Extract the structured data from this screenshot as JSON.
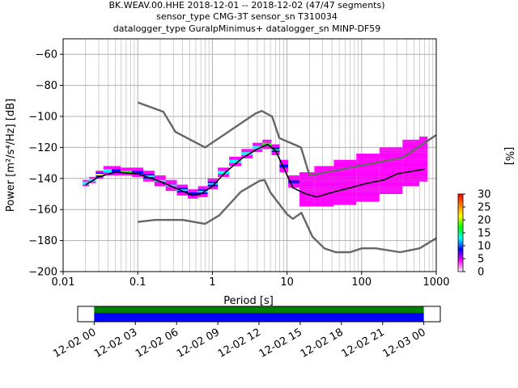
{
  "chart_data": [
    {
      "type": "heatmap",
      "title_lines": [
        "BK.WEAV.00.HHE   2018-12-01 -- 2018-12-02  (47/47 segments)",
        "sensor_type CMG-3T sensor_sn T310034",
        "datalogger_type GuralpMinimus+ datalogger_sn MINP-DF59"
      ],
      "xlabel": "Period [s]",
      "ylabel": "Power [m²/s⁴/Hz] [dB]",
      "xscale": "log",
      "xlim": [
        0.01,
        1000
      ],
      "ylim": [
        -200,
        -50
      ],
      "grid": true,
      "x_tick_values": [
        0.01,
        0.1,
        1,
        10,
        100,
        1000
      ],
      "x_tick_labels": [
        "0.01",
        "0.1",
        "1",
        "10",
        "100",
        "1000"
      ],
      "y_tick_values": [
        -60,
        -80,
        -100,
        -120,
        -140,
        -160,
        -180,
        -200
      ],
      "y_tick_labels": [
        "−60",
        "−80",
        "−100",
        "−120",
        "−140",
        "−160",
        "−180",
        "−200"
      ],
      "colorbar": {
        "label": "[%]",
        "range": [
          0,
          30
        ],
        "tick_values": [
          0,
          5,
          10,
          15,
          20,
          25,
          30
        ],
        "tick_labels": [
          "0",
          "5",
          "10",
          "15",
          "20",
          "25",
          "30"
        ],
        "colors": [
          "#ffffff",
          "#ff00ff",
          "#0000ff",
          "#00ffff",
          "#00ff00",
          "#ffff00",
          "#ff8000",
          "#ff0000"
        ]
      },
      "series": [
        {
          "curve": "noise-model-high",
          "color": "#666666",
          "points": [
            [
              0.1,
              -91
            ],
            [
              0.22,
              -97
            ],
            [
              0.32,
              -110
            ],
            [
              0.8,
              -120
            ],
            [
              3.8,
              -98
            ],
            [
              4.6,
              -96.5
            ],
            [
              6.3,
              -100
            ],
            [
              7.9,
              -114
            ],
            [
              15.4,
              -120
            ],
            [
              20,
              -138
            ],
            [
              354.8,
              -126.5
            ],
            [
              1000,
              -112
            ]
          ]
        },
        {
          "curve": "noise-model-low",
          "color": "#666666",
          "points": [
            [
              0.1,
              -168
            ],
            [
              0.17,
              -166.7
            ],
            [
              0.4,
              -166.7
            ],
            [
              0.8,
              -169.2
            ],
            [
              1.24,
              -163.7
            ],
            [
              2.4,
              -148.6
            ],
            [
              4.3,
              -141.5
            ],
            [
              5,
              -141
            ],
            [
              6,
              -149
            ],
            [
              10,
              -163
            ],
            [
              12,
              -166
            ],
            [
              15.6,
              -162.1
            ],
            [
              21.9,
              -177.5
            ],
            [
              31.6,
              -185
            ],
            [
              45,
              -187.5
            ],
            [
              70,
              -187.5
            ],
            [
              101,
              -185
            ],
            [
              154,
              -185
            ],
            [
              328,
              -187.5
            ],
            [
              600,
              -185
            ],
            [
              1000,
              -178.5
            ]
          ]
        },
        {
          "curve": "mode",
          "color": "#000000",
          "points": [
            [
              0.02,
              -144
            ],
            [
              0.03,
              -139
            ],
            [
              0.05,
              -136
            ],
            [
              0.1,
              -137
            ],
            [
              0.2,
              -142
            ],
            [
              0.35,
              -147
            ],
            [
              0.55,
              -151
            ],
            [
              0.7,
              -150
            ],
            [
              1,
              -145
            ],
            [
              1.5,
              -136
            ],
            [
              2.5,
              -127
            ],
            [
              4,
              -121
            ],
            [
              5.5,
              -118
            ],
            [
              7,
              -122
            ],
            [
              9,
              -133
            ],
            [
              12,
              -146
            ],
            [
              18,
              -150
            ],
            [
              25,
              -152
            ],
            [
              40,
              -149
            ],
            [
              70,
              -146
            ],
            [
              120,
              -143
            ],
            [
              200,
              -141
            ],
            [
              300,
              -137
            ],
            [
              700,
              -134
            ]
          ]
        }
      ],
      "psd_density": [
        [
          0.02,
          -145,
          -141,
          25
        ],
        [
          0.025,
          -143,
          -139,
          22
        ],
        [
          0.03,
          -140,
          -135,
          20
        ],
        [
          0.04,
          -138,
          -132,
          16
        ],
        [
          0.05,
          -138,
          -132,
          15
        ],
        [
          0.07,
          -138,
          -133,
          16
        ],
        [
          0.1,
          -139,
          -133,
          15
        ],
        [
          0.14,
          -142,
          -135,
          13
        ],
        [
          0.2,
          -145,
          -138,
          12
        ],
        [
          0.28,
          -148,
          -141,
          12
        ],
        [
          0.4,
          -151,
          -144,
          13
        ],
        [
          0.55,
          -153,
          -147,
          14
        ],
        [
          0.75,
          -152,
          -145,
          14
        ],
        [
          1,
          -147,
          -140,
          14
        ],
        [
          1.4,
          -139,
          -133,
          16
        ],
        [
          2,
          -132,
          -126,
          17
        ],
        [
          3,
          -127,
          -121,
          18
        ],
        [
          4,
          -123,
          -117,
          20
        ],
        [
          5.5,
          -121,
          -115,
          22
        ],
        [
          7,
          -125,
          -118,
          16
        ],
        [
          9,
          -136,
          -128,
          12
        ],
        [
          12,
          -146,
          -138,
          9
        ],
        [
          18,
          -158,
          -136,
          5
        ],
        [
          30,
          -158,
          -132,
          4
        ],
        [
          60,
          -157,
          -128,
          4
        ],
        [
          120,
          -155,
          -124,
          4
        ],
        [
          250,
          -150,
          -120,
          4
        ],
        [
          500,
          -145,
          -115,
          5
        ],
        [
          700,
          -142,
          -113,
          5
        ]
      ]
    },
    {
      "type": "timeline",
      "x_tick_labels": [
        "12-02 00",
        "12-02 03",
        "12-02 06",
        "12-02 09",
        "12-02 12",
        "12-02 15",
        "12-02 18",
        "12-02 21",
        "12-03 00"
      ],
      "x_tick_values_hours": [
        0,
        3,
        6,
        9,
        12,
        15,
        18,
        21,
        24
      ],
      "xlim_hours": [
        -1.2,
        25.2
      ],
      "coverage": [
        {
          "band": "top",
          "color": "#008000",
          "start_hour": 0,
          "end_hour": 24
        },
        {
          "band": "bottom",
          "color": "#0000ff",
          "start_hour": 0,
          "end_hour": 24
        }
      ]
    }
  ]
}
